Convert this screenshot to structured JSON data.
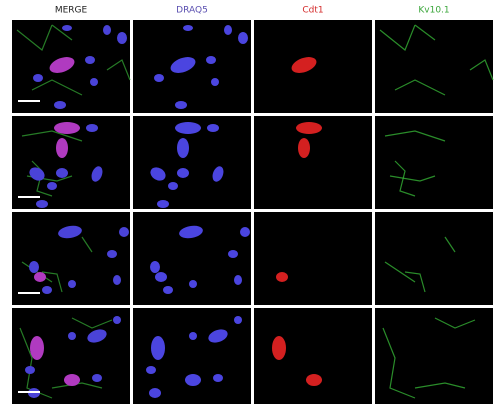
{
  "columns": [
    {
      "label": "MERGE"
    },
    {
      "label": "DRAQ5"
    },
    {
      "label": "Cdt1"
    },
    {
      "label": "Kv10.1"
    }
  ]
}
